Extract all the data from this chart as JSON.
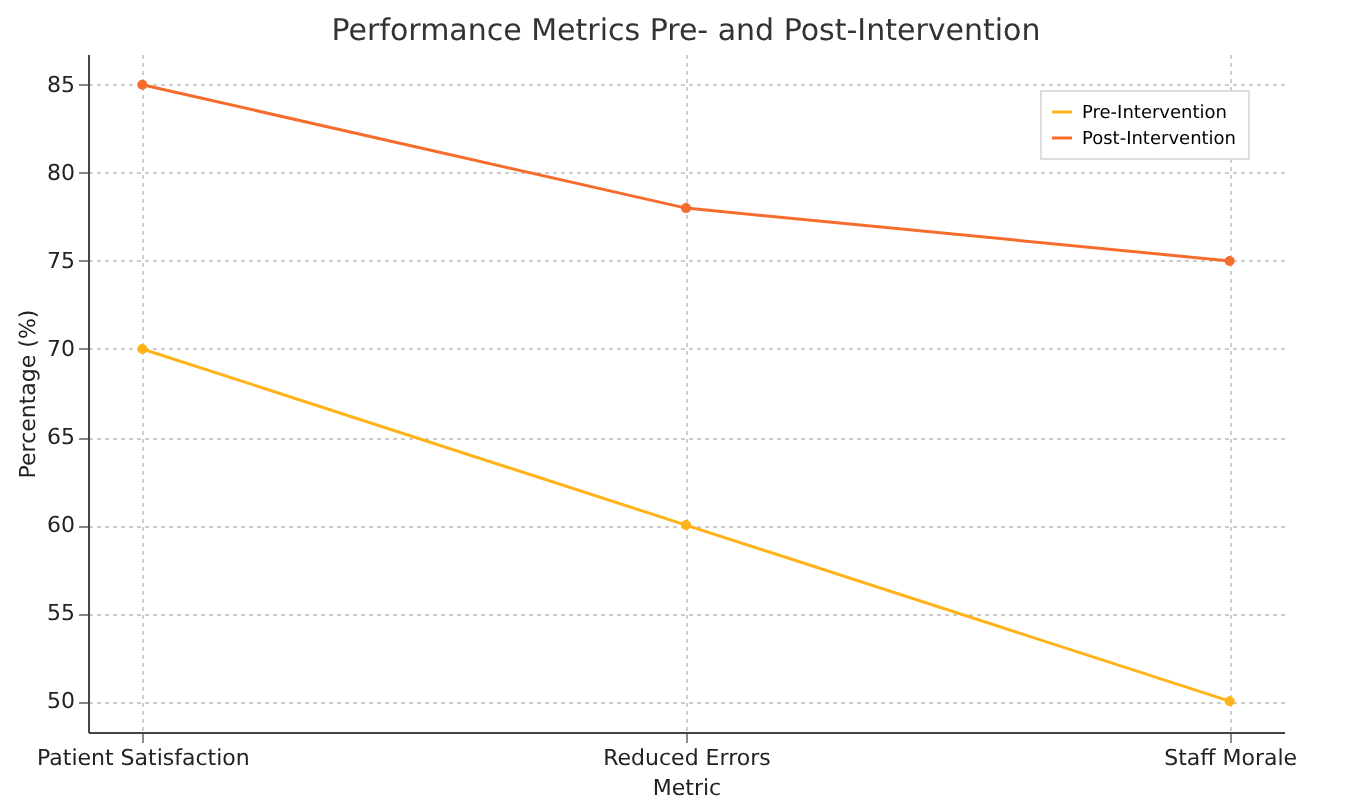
{
  "chart_data": {
    "type": "line",
    "title": "Performance Metrics Pre- and Post-Intervention",
    "xlabel": "Metric",
    "ylabel": "Percentage (%)",
    "categories": [
      "Patient Satisfaction",
      "Reduced Errors",
      "Staff Morale"
    ],
    "series": [
      {
        "name": "Pre-Intervention",
        "color": "#ffb319",
        "values": [
          70,
          60,
          50
        ]
      },
      {
        "name": "Post-Intervention",
        "color": "#f56c2d",
        "values": [
          85,
          78,
          75
        ]
      }
    ],
    "ylim": [
      48.25,
      86.75
    ],
    "yticks": [
      50,
      55,
      60,
      65,
      70,
      75,
      80,
      85
    ],
    "grid": true,
    "legend": "top right",
    "marker": "circle",
    "line_style": "solid"
  }
}
